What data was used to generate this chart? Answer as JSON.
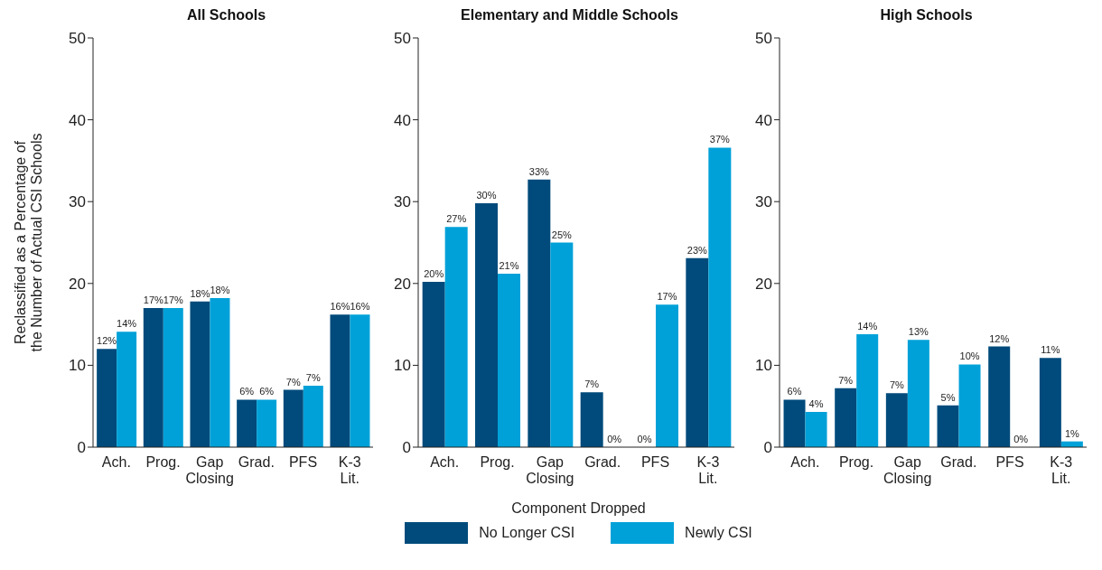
{
  "chart_data": [
    {
      "type": "bar",
      "title": "All Schools",
      "ylabel": "Reclassified as a Percentage of the Number of Actual CSI Schools",
      "categories": [
        "Ach.",
        "Prog.",
        "Gap Closing",
        "Grad.",
        "PFS",
        "K-3 Lit."
      ],
      "ylim": [
        0,
        50
      ],
      "yticks": [
        0,
        10,
        20,
        30,
        40,
        50
      ],
      "grid": false,
      "legend": false,
      "series": [
        {
          "color": "#004b7c",
          "values": [
            12.0,
            17.0,
            17.8,
            5.8,
            7.0,
            16.2
          ],
          "value_labels": [
            "12%",
            "17%",
            "18%",
            "6%",
            "7%",
            "16%"
          ]
        },
        {
          "color": "#00a1d8",
          "values": [
            14.1,
            17.0,
            18.2,
            5.8,
            7.5,
            16.2
          ],
          "value_labels": [
            "14%",
            "17%",
            "18%",
            "6%",
            "7%",
            "16%"
          ]
        }
      ]
    },
    {
      "type": "bar",
      "title": "Elementary and Middle Schools",
      "xlabel": "Component Dropped",
      "categories": [
        "Ach.",
        "Prog.",
        "Gap Closing",
        "Grad.",
        "PFS",
        "K-3 Lit."
      ],
      "ylim": [
        0,
        50
      ],
      "yticks": [
        0,
        10,
        20,
        30,
        40,
        50
      ],
      "grid": false,
      "legend": "bottom",
      "series": [
        {
          "name": "No Longer CSI",
          "color": "#004b7c",
          "values": [
            20.2,
            29.8,
            32.7,
            6.7,
            0,
            23.1
          ],
          "value_labels": [
            "20%",
            "30%",
            "33%",
            "7%",
            "0%",
            "23%"
          ]
        },
        {
          "name": "Newly CSI",
          "color": "#00a1d8",
          "values": [
            26.9,
            21.2,
            25.0,
            0,
            17.4,
            36.6
          ],
          "value_labels": [
            "27%",
            "21%",
            "25%",
            "0%",
            "17%",
            "37%"
          ]
        }
      ]
    },
    {
      "type": "bar",
      "title": "High Schools",
      "categories": [
        "Ach.",
        "Prog.",
        "Gap Closing",
        "Grad.",
        "PFS",
        "K-3 Lit."
      ],
      "ylim": [
        0,
        50
      ],
      "yticks": [
        0,
        10,
        20,
        30,
        40,
        50
      ],
      "grid": false,
      "legend": false,
      "series": [
        {
          "color": "#004b7c",
          "values": [
            5.8,
            7.2,
            6.6,
            5.1,
            12.3,
            10.9
          ],
          "value_labels": [
            "6%",
            "7%",
            "7%",
            "5%",
            "12%",
            "11%"
          ]
        },
        {
          "color": "#00a1d8",
          "values": [
            4.3,
            13.8,
            13.1,
            10.1,
            0,
            0.7
          ],
          "value_labels": [
            "4%",
            "14%",
            "13%",
            "10%",
            "0%",
            "1%"
          ]
        }
      ]
    }
  ]
}
